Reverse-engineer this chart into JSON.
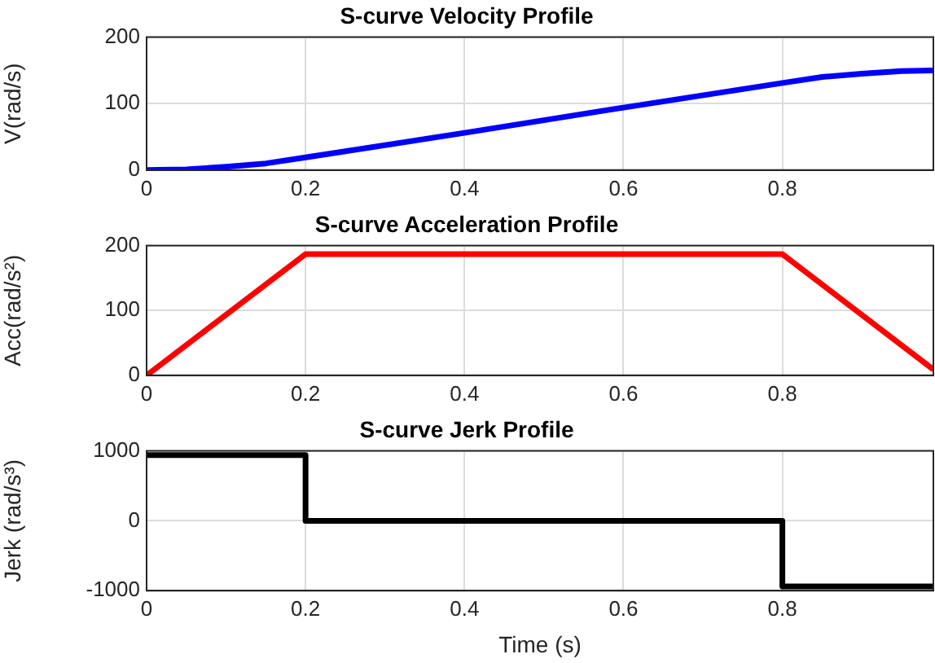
{
  "chart_data": [
    {
      "type": "line",
      "title": "S-curve Velocity Profile",
      "ylabel": "V(rad/s)",
      "x": [
        0,
        0.05,
        0.1,
        0.15,
        0.2,
        0.4,
        0.6,
        0.8,
        0.85,
        0.9,
        0.95,
        0.99
      ],
      "values": [
        0,
        1,
        5,
        10,
        19,
        56,
        94,
        131,
        140,
        145,
        149,
        150
      ],
      "color": "#0000ff",
      "xlim": [
        0,
        0.99
      ],
      "xticks": [
        0,
        0.2,
        0.4,
        0.6,
        0.8
      ],
      "ylim": [
        0,
        200
      ],
      "yticks": [
        0,
        100,
        200
      ],
      "grid": true
    },
    {
      "type": "line",
      "title": "S-curve Acceleration Profile",
      "ylabel": "Acc(rad/s²)",
      "x": [
        0,
        0.2,
        0.8,
        0.99
      ],
      "values": [
        0,
        187,
        187,
        9
      ],
      "color": "#ff0000",
      "xlim": [
        0,
        0.99
      ],
      "xticks": [
        0,
        0.2,
        0.4,
        0.6,
        0.8
      ],
      "ylim": [
        0,
        200
      ],
      "yticks": [
        0,
        100,
        200
      ],
      "grid": true
    },
    {
      "type": "line",
      "title": "S-curve Jerk Profile",
      "xlabel": "Time (s)",
      "ylabel": "Jerk (rad/s³)",
      "x": [
        0,
        0.2,
        0.2,
        0.8,
        0.8,
        0.99
      ],
      "values": [
        940,
        940,
        0,
        0,
        -940,
        -940
      ],
      "color": "#000000",
      "xlim": [
        0,
        0.99
      ],
      "xticks": [
        0,
        0.2,
        0.4,
        0.6,
        0.8
      ],
      "ylim": [
        -1000,
        1000
      ],
      "yticks": [
        -1000,
        0,
        1000
      ],
      "grid": true
    }
  ]
}
